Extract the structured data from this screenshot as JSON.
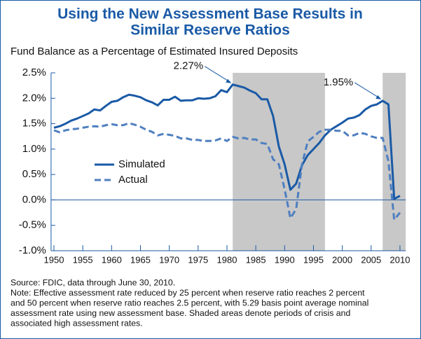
{
  "chart_data": {
    "type": "line",
    "title": [
      "Using the New Assessment Base Results in",
      "Similar Reserve Ratios"
    ],
    "subtitle": "Fund Balance as a Percentage of Estimated Insured Deposits",
    "x": [
      1950,
      1951,
      1952,
      1953,
      1954,
      1955,
      1956,
      1957,
      1958,
      1959,
      1960,
      1961,
      1962,
      1963,
      1964,
      1965,
      1966,
      1967,
      1968,
      1969,
      1970,
      1971,
      1972,
      1973,
      1974,
      1975,
      1976,
      1977,
      1978,
      1979,
      1980,
      1981,
      1982,
      1983,
      1984,
      1985,
      1986,
      1987,
      1988,
      1989,
      1990,
      1991,
      1992,
      1993,
      1994,
      1995,
      1996,
      1997,
      1998,
      1999,
      2000,
      2001,
      2002,
      2003,
      2004,
      2005,
      2006,
      2007,
      2008,
      2009,
      2010
    ],
    "series": [
      {
        "name": "Simulated",
        "color": "#1a5aa6",
        "dash": false,
        "values": [
          1.42,
          1.45,
          1.5,
          1.56,
          1.6,
          1.65,
          1.7,
          1.78,
          1.76,
          1.85,
          1.93,
          1.95,
          2.02,
          2.07,
          2.05,
          2.02,
          1.96,
          1.92,
          1.86,
          1.97,
          1.97,
          2.03,
          1.95,
          1.96,
          1.96,
          2.0,
          1.99,
          2.0,
          2.04,
          2.16,
          2.12,
          2.27,
          2.24,
          2.21,
          2.15,
          2.1,
          1.98,
          1.98,
          1.65,
          1.05,
          0.7,
          0.2,
          0.32,
          0.68,
          0.88,
          1.0,
          1.12,
          1.27,
          1.38,
          1.45,
          1.52,
          1.6,
          1.62,
          1.67,
          1.78,
          1.85,
          1.88,
          1.95,
          1.88,
          0.02,
          0.08
        ]
      },
      {
        "name": "Actual",
        "color": "#4f7fc0",
        "dash": true,
        "values": [
          1.37,
          1.33,
          1.37,
          1.39,
          1.4,
          1.42,
          1.44,
          1.45,
          1.44,
          1.47,
          1.49,
          1.47,
          1.47,
          1.51,
          1.48,
          1.44,
          1.38,
          1.34,
          1.27,
          1.3,
          1.28,
          1.26,
          1.21,
          1.21,
          1.18,
          1.18,
          1.16,
          1.16,
          1.17,
          1.21,
          1.16,
          1.24,
          1.21,
          1.22,
          1.19,
          1.19,
          1.12,
          1.1,
          0.8,
          0.7,
          0.21,
          -0.36,
          -0.18,
          0.69,
          1.15,
          1.24,
          1.34,
          1.38,
          1.38,
          1.36,
          1.36,
          1.27,
          1.27,
          1.32,
          1.3,
          1.25,
          1.22,
          1.22,
          0.76,
          -0.39,
          -0.25
        ]
      }
    ],
    "xlim": [
      1949.5,
      2011
    ],
    "xticks": [
      1950,
      1955,
      1960,
      1965,
      1970,
      1975,
      1980,
      1985,
      1990,
      1995,
      2000,
      2005,
      2010
    ],
    "ylim": [
      -1,
      2.5
    ],
    "yticks": [
      {
        "value": -1,
        "label": "-1.0%"
      },
      {
        "value": -0.5,
        "label": "-0.5%"
      },
      {
        "value": 0,
        "label": "0.0%"
      },
      {
        "value": 0.5,
        "label": "0.5%"
      },
      {
        "value": 1,
        "label": "1.0%"
      },
      {
        "value": 1.5,
        "label": "1.5%"
      },
      {
        "value": 2,
        "label": "2.0%"
      },
      {
        "value": 2.5,
        "label": "2.5%"
      }
    ],
    "shaded": [
      [
        1981,
        1997
      ],
      [
        2007,
        2011
      ]
    ],
    "shade_color": "#c8c8c8",
    "annotations": [
      {
        "text": "2.27%",
        "x": 1981,
        "y": 2.27
      },
      {
        "text": "1.95%",
        "x": 2007,
        "y": 1.95
      }
    ],
    "legend": "left",
    "notes": [
      "Source: FDIC, data through June 30, 2010.",
      "Note: Effective assessment rate reduced by 25 percent when reserve ratio reaches 2 percent",
      "and 50 percent when reserve ratio reaches 2.5 percent, with 5.29 basis point average nominal",
      "assessment rate using new assessment base. Shaded areas denote periods of crisis and",
      "associated high assessment rates."
    ]
  }
}
